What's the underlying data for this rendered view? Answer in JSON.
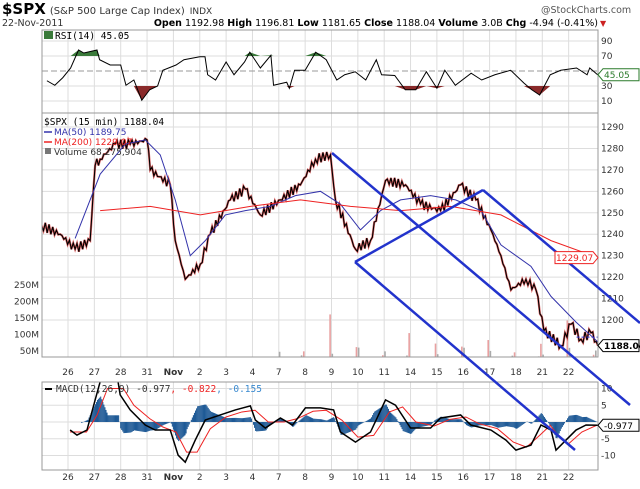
{
  "header": {
    "symbol": "$SPX",
    "name": "(S&P 500 Large Cap Index)",
    "exchange": "INDX",
    "watermark": "@StockCharts.com",
    "date": "22-Nov-2011",
    "open_label": "Open",
    "open": "1192.98",
    "high_label": "High",
    "high": "1196.81",
    "low_label": "Low",
    "low": "1181.65",
    "close_label": "Close",
    "close": "1188.04",
    "volume_label": "Volume",
    "volume": "3.0B",
    "chg_label": "Chg",
    "chg": "-4.94 (-0.41%)",
    "chg_arrow": "▼"
  },
  "colors": {
    "price": "#000000",
    "ma50": "#3333aa",
    "ma200": "#ee2222",
    "channel": "#2233cc",
    "hist": "#1f5a96",
    "rsi_fill_high": "#3a7a3a",
    "rsi_fill_low": "#8a2a2a"
  },
  "chart_data": [
    {
      "type": "line",
      "title": "RSI(14) 45.05",
      "legend": "RSI(14) 45.05",
      "yticks": [
        "90",
        "70",
        "30",
        "10"
      ],
      "ylim": [
        0,
        100
      ],
      "current_tag": "45.05",
      "series": [
        {
          "name": "RSI(14)",
          "points": [
            [
              -0.8,
              37
            ],
            [
              -0.5,
              31
            ],
            [
              -0.2,
              41
            ],
            [
              0.1,
              54
            ],
            [
              0.4,
              78
            ],
            [
              0.6,
              74
            ],
            [
              1.1,
              78
            ],
            [
              1.2,
              65
            ],
            [
              1.6,
              58
            ],
            [
              2.0,
              58
            ],
            [
              2.2,
              31
            ],
            [
              2.5,
              38
            ],
            [
              2.8,
              11
            ],
            [
              3.1,
              25
            ],
            [
              3.4,
              30
            ],
            [
              3.6,
              51
            ],
            [
              4.1,
              58
            ],
            [
              4.4,
              65
            ],
            [
              5.0,
              69
            ],
            [
              5.2,
              69
            ],
            [
              5.3,
              45
            ],
            [
              5.6,
              38
            ],
            [
              6.0,
              62
            ],
            [
              6.3,
              45
            ],
            [
              6.7,
              62
            ],
            [
              6.9,
              75
            ],
            [
              7.3,
              54
            ],
            [
              7.7,
              71
            ],
            [
              7.8,
              31
            ],
            [
              8.3,
              35
            ],
            [
              8.4,
              27
            ],
            [
              8.6,
              51
            ],
            [
              9.0,
              51
            ],
            [
              9.4,
              75
            ],
            [
              9.8,
              65
            ],
            [
              10.2,
              38
            ],
            [
              10.5,
              45
            ],
            [
              10.9,
              49
            ],
            [
              11.3,
              38
            ],
            [
              11.7,
              65
            ],
            [
              11.9,
              45
            ],
            [
              12.4,
              44
            ],
            [
              12.8,
              25
            ],
            [
              13.2,
              25
            ],
            [
              13.6,
              49
            ],
            [
              14.0,
              27
            ],
            [
              14.3,
              51
            ],
            [
              14.7,
              31
            ],
            [
              15.3,
              47
            ],
            [
              15.7,
              38
            ],
            [
              16.2,
              45
            ],
            [
              16.8,
              51
            ],
            [
              17.3,
              34
            ],
            [
              17.6,
              25
            ],
            [
              17.9,
              18
            ],
            [
              18.3,
              45
            ],
            [
              18.7,
              51
            ],
            [
              19.3,
              54
            ],
            [
              19.7,
              45
            ],
            [
              19.8,
              54
            ],
            [
              20.1,
              45.05
            ]
          ]
        }
      ]
    },
    {
      "type": "line",
      "title": "$SPX (15 min) 1188.04",
      "legend": [
        {
          "label": "$SPX (15 min) 1188.04"
        },
        {
          "label": "MA(50) 1189.75"
        },
        {
          "label": "MA(200) 1229.07"
        },
        {
          "label": "Volume 68,275,904"
        }
      ],
      "yticks": [
        "1290",
        "1280",
        "1270",
        "1260",
        "1250",
        "1240",
        "1230",
        "1220",
        "1210",
        "1200"
      ],
      "ylim": [
        1180,
        1297
      ],
      "volume_ticks": [
        "250M",
        "200M",
        "150M",
        "100M",
        "50M"
      ],
      "tags": {
        "ma200": "1229.07",
        "close": "1188.04"
      },
      "series": [
        {
          "name": "$SPX",
          "points": [
            [
              -1.0,
              1244
            ],
            [
              -0.3,
              1240
            ],
            [
              0.27,
              1233
            ],
            [
              0.84,
              1237
            ],
            [
              1.03,
              1272
            ],
            [
              1.22,
              1275
            ],
            [
              1.79,
              1282
            ],
            [
              2.36,
              1282
            ],
            [
              3.0,
              1284
            ],
            [
              3.12,
              1270
            ],
            [
              3.88,
              1263
            ],
            [
              4.07,
              1237
            ],
            [
              4.45,
              1219
            ],
            [
              5.02,
              1226
            ],
            [
              5.4,
              1240
            ],
            [
              6.16,
              1256
            ],
            [
              6.73,
              1261
            ],
            [
              7.3,
              1249
            ],
            [
              8.06,
              1256
            ],
            [
              8.82,
              1263
            ],
            [
              9.39,
              1275
            ],
            [
              9.96,
              1277
            ],
            [
              10.15,
              1256
            ],
            [
              10.91,
              1233
            ],
            [
              11.48,
              1237
            ],
            [
              12.05,
              1265
            ],
            [
              12.81,
              1263
            ],
            [
              13.38,
              1254
            ],
            [
              14.14,
              1251
            ],
            [
              14.9,
              1263
            ],
            [
              15.48,
              1256
            ],
            [
              16.05,
              1242
            ],
            [
              16.43,
              1230
            ],
            [
              16.81,
              1214
            ],
            [
              17.38,
              1219
            ],
            [
              17.76,
              1214
            ],
            [
              18.06,
              1195
            ],
            [
              18.71,
              1188
            ],
            [
              19.09,
              1198
            ],
            [
              19.47,
              1191
            ],
            [
              19.85,
              1194
            ],
            [
              20.11,
              1188.04
            ]
          ]
        },
        {
          "name": "MA(50)",
          "points": [
            [
              0.27,
              1238
            ],
            [
              1.22,
              1268
            ],
            [
              2.17,
              1282
            ],
            [
              2.93,
              1284
            ],
            [
              3.5,
              1277
            ],
            [
              4.07,
              1256
            ],
            [
              4.64,
              1230
            ],
            [
              5.21,
              1237
            ],
            [
              5.97,
              1249
            ],
            [
              6.73,
              1251
            ],
            [
              7.68,
              1253
            ],
            [
              8.63,
              1258
            ],
            [
              9.58,
              1260
            ],
            [
              10.34,
              1254
            ],
            [
              11.1,
              1242
            ],
            [
              11.86,
              1251
            ],
            [
              12.62,
              1256
            ],
            [
              13.76,
              1258
            ],
            [
              14.71,
              1256
            ],
            [
              15.67,
              1251
            ],
            [
              16.43,
              1235
            ],
            [
              17.57,
              1225
            ],
            [
              18.33,
              1211
            ],
            [
              19.28,
              1199
            ],
            [
              20.11,
              1189.75
            ]
          ]
        },
        {
          "name": "MA(200)",
          "points": [
            [
              1.22,
              1251
            ],
            [
              3.12,
              1253
            ],
            [
              5.02,
              1249
            ],
            [
              6.92,
              1253
            ],
            [
              8.82,
              1256
            ],
            [
              10.72,
              1253
            ],
            [
              12.62,
              1251
            ],
            [
              14.52,
              1253
            ],
            [
              16.43,
              1249
            ],
            [
              18.33,
              1237
            ],
            [
              20.11,
              1229.07
            ]
          ]
        }
      ],
      "volume_profile_M": [
        45,
        22,
        16,
        13,
        12,
        11,
        12,
        13,
        15,
        19,
        28,
        55
      ],
      "volume_from_session": 8
    },
    {
      "type": "line",
      "title": "MACD(12,26,9)",
      "legend_name": "MACD(12,26,9)",
      "legend_macd": "-0.977",
      "legend_signal": ", -0.822",
      "legend_hist": ", -0.155",
      "yticks": [
        "10",
        "5",
        "-5",
        "-10"
      ],
      "ylim": [
        -12,
        12
      ],
      "current_tag": "-0.977",
      "series": [
        {
          "name": "MACD",
          "points": [
            [
              0.08,
              -2.4
            ],
            [
              0.34,
              -3.9
            ],
            [
              0.72,
              -2.4
            ],
            [
              1.03,
              6.6
            ],
            [
              1.22,
              12
            ],
            [
              1.6,
              12
            ],
            [
              1.9,
              12
            ],
            [
              1.98,
              8.1
            ],
            [
              2.36,
              3.6
            ],
            [
              2.93,
              -0.9
            ],
            [
              3.31,
              -2.4
            ],
            [
              3.88,
              -2.4
            ],
            [
              4.18,
              -9.9
            ],
            [
              4.45,
              -12
            ],
            [
              4.83,
              -5.4
            ],
            [
              5.21,
              0.6
            ],
            [
              5.78,
              2.1
            ],
            [
              6.35,
              3.6
            ],
            [
              6.92,
              4.8
            ],
            [
              7.11,
              0.6
            ],
            [
              7.49,
              -1.8
            ],
            [
              8.06,
              1.2
            ],
            [
              8.52,
              -0.9
            ],
            [
              9.01,
              4.2
            ],
            [
              9.58,
              4.2
            ],
            [
              10.08,
              3.6
            ],
            [
              10.34,
              -3
            ],
            [
              10.91,
              -6
            ],
            [
              11.48,
              -3
            ],
            [
              12.05,
              6.6
            ],
            [
              12.43,
              5
            ],
            [
              13.0,
              -1.8
            ],
            [
              13.76,
              -1.8
            ],
            [
              14.14,
              1.2
            ],
            [
              14.9,
              2.1
            ],
            [
              15.29,
              -0.9
            ],
            [
              16.05,
              -2.4
            ],
            [
              16.62,
              -5.4
            ],
            [
              17.0,
              -8.4
            ],
            [
              17.57,
              -6.9
            ],
            [
              17.95,
              -0.9
            ],
            [
              18.33,
              -2.4
            ],
            [
              18.52,
              -8.4
            ],
            [
              18.9,
              -5.4
            ],
            [
              19.28,
              -2.4
            ],
            [
              19.66,
              -0.9
            ],
            [
              20.11,
              -0.977
            ]
          ]
        },
        {
          "name": "Signal",
          "points": [
            [
              0.08,
              -3
            ],
            [
              0.7,
              -3
            ],
            [
              1.1,
              2
            ],
            [
              1.5,
              10
            ],
            [
              2.1,
              10
            ],
            [
              2.5,
              5
            ],
            [
              3.1,
              1
            ],
            [
              3.6,
              -1.5
            ],
            [
              4.1,
              -3
            ],
            [
              4.5,
              -9
            ],
            [
              4.9,
              -9
            ],
            [
              5.4,
              -2
            ],
            [
              6.0,
              1.5
            ],
            [
              6.6,
              3
            ],
            [
              7.1,
              3.5
            ],
            [
              7.6,
              0
            ],
            [
              8.2,
              0
            ],
            [
              8.7,
              1
            ],
            [
              9.3,
              3.2
            ],
            [
              9.8,
              3.5
            ],
            [
              10.4,
              0.5
            ],
            [
              11.0,
              -4.5
            ],
            [
              11.6,
              -4
            ],
            [
              12.2,
              3
            ],
            [
              12.7,
              4.5
            ],
            [
              13.2,
              0
            ],
            [
              13.9,
              -1.2
            ],
            [
              14.5,
              0.8
            ],
            [
              15.1,
              1.5
            ],
            [
              15.6,
              -0.5
            ],
            [
              16.3,
              -2
            ],
            [
              16.9,
              -6
            ],
            [
              17.4,
              -7.5
            ],
            [
              17.9,
              -4
            ],
            [
              18.3,
              -1
            ],
            [
              18.7,
              -5
            ],
            [
              19.0,
              -6.5
            ],
            [
              19.5,
              -3
            ],
            [
              20.11,
              -0.822
            ]
          ]
        }
      ]
    }
  ],
  "x_axis": {
    "labels": [
      [
        "26",
        0
      ],
      [
        "27",
        1
      ],
      [
        "28",
        2
      ],
      [
        "31",
        3
      ],
      [
        "Nov",
        4
      ],
      [
        "2",
        5
      ],
      [
        "3",
        6
      ],
      [
        "4",
        7
      ],
      [
        "7",
        8
      ],
      [
        "8",
        9
      ],
      [
        "9",
        10
      ],
      [
        "10",
        11
      ],
      [
        "11",
        12
      ],
      [
        "14",
        13
      ],
      [
        "15",
        14
      ],
      [
        "16",
        15
      ],
      [
        "17",
        16
      ],
      [
        "18",
        17
      ],
      [
        "21",
        18
      ],
      [
        "22",
        19
      ]
    ]
  }
}
